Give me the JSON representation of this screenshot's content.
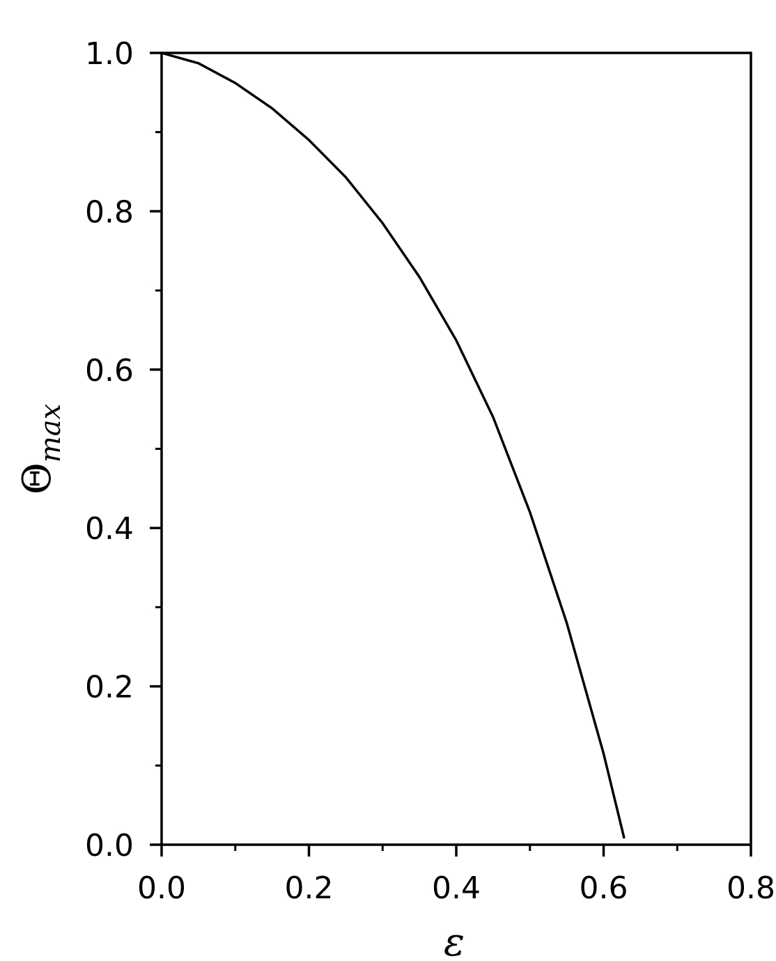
{
  "chart_data": {
    "type": "line",
    "title": "",
    "xlabel": "ε",
    "ylabel": "Θ",
    "ylabel_subscript": "max",
    "xlim": [
      0.0,
      0.8
    ],
    "ylim": [
      0.0,
      1.0
    ],
    "grid": false,
    "x_ticks": [
      "0.0",
      "0.2",
      "0.4",
      "0.6",
      "0.8"
    ],
    "y_ticks": [
      "0.0",
      "0.2",
      "0.4",
      "0.6",
      "0.8",
      "1.0"
    ],
    "x_minor_ticks": [
      0.1,
      0.3,
      0.5,
      0.7
    ],
    "y_minor_ticks": [
      0.1,
      0.3,
      0.5,
      0.7,
      0.9
    ],
    "series": [
      {
        "color": "#000000",
        "x": [
          0.0,
          0.05,
          0.1,
          0.15,
          0.2,
          0.25,
          0.3,
          0.35,
          0.4,
          0.45,
          0.5,
          0.55,
          0.6,
          0.628
        ],
        "y": [
          1.0,
          0.987,
          0.962,
          0.93,
          0.89,
          0.843,
          0.785,
          0.717,
          0.637,
          0.54,
          0.42,
          0.28,
          0.115,
          0.008
        ]
      }
    ]
  }
}
